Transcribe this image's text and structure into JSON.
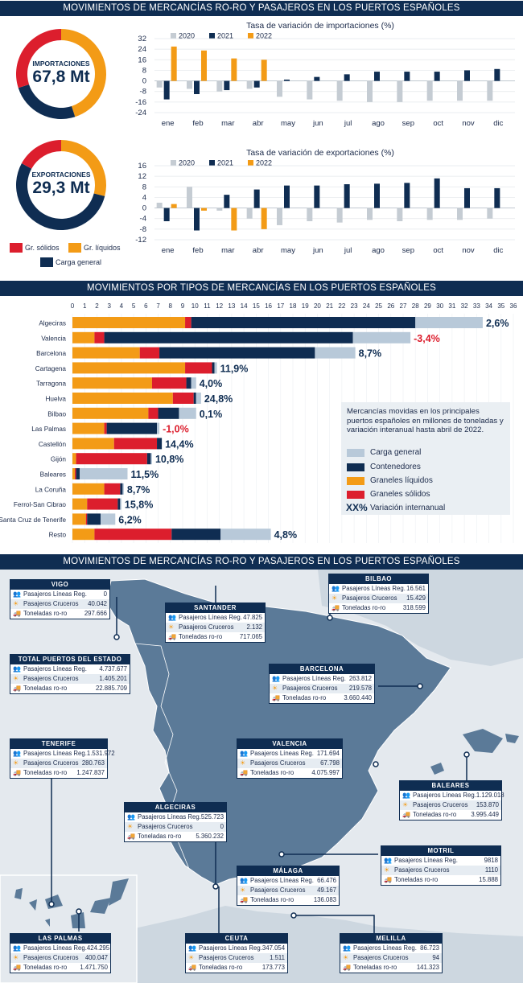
{
  "section1_title": "MOVIMIENTOS DE MERCANCÍAS RO-RO Y PASAJEROS EN LOS PUERTOS ESPAÑOLES",
  "section2_title": "MOVIMIENTOS POR TIPOS DE MERCANCÍAS EN LOS PUERTOS ESPAÑOLES",
  "section3_title": "MOVIMIENTOS DE MERCANCÍAS RO-RO Y PASAJEROS EN LOS PUERTOS ESPAÑOLES",
  "colors": {
    "navy": "#0f2d52",
    "orange": "#f39b16",
    "red": "#dc1e2d",
    "light": "#b8c9d9",
    "gray": "#c5ccd3",
    "sea": "#e4e9ee",
    "land": "#5b7a98"
  },
  "donuts": [
    {
      "label": "IMPORTACIONES",
      "value": "67,8 Mt",
      "shares": {
        "solidos": 0.3,
        "liquidos": 0.45,
        "general": 0.25
      }
    },
    {
      "label": "EXPORTACIONES",
      "value": "29,3 Mt",
      "shares": {
        "solidos": 0.17,
        "liquidos": 0.29,
        "general": 0.54
      }
    }
  ],
  "donut_legend": {
    "solidos": "Gr. sólidos",
    "liquidos": "Gr. líquidos",
    "general": "Carga general"
  },
  "chart_data": [
    {
      "type": "bar",
      "title": "Tasa de variación de importaciones (%)",
      "categories": [
        "ene",
        "feb",
        "mar",
        "abr",
        "may",
        "jun",
        "jul",
        "ago",
        "sep",
        "oct",
        "nov",
        "dic"
      ],
      "ylim": [
        -24,
        32
      ],
      "yticks": [
        32,
        24,
        16,
        8,
        0,
        -8,
        -16,
        -24
      ],
      "series": [
        {
          "name": "2020",
          "color": "#c5ccd3",
          "values": [
            -5,
            -6,
            -8,
            -6,
            -12,
            -14,
            -15,
            -16,
            -16,
            -15,
            -15,
            -15
          ]
        },
        {
          "name": "2021",
          "color": "#0f2d52",
          "values": [
            -14,
            -10,
            -7,
            -5,
            1,
            3,
            5,
            7,
            7,
            7,
            8,
            9
          ]
        },
        {
          "name": "2022",
          "color": "#f39b16",
          "values": [
            26,
            23,
            17,
            16,
            null,
            null,
            null,
            null,
            null,
            null,
            null,
            null
          ]
        }
      ]
    },
    {
      "type": "bar",
      "title": "Tasa de variación de exportaciones (%)",
      "categories": [
        "ene",
        "feb",
        "mar",
        "abr",
        "may",
        "jun",
        "jul",
        "ago",
        "sep",
        "oct",
        "nov",
        "dic"
      ],
      "ylim": [
        -12,
        16
      ],
      "yticks": [
        16,
        12,
        8,
        4,
        0,
        -4,
        -8,
        -12
      ],
      "series": [
        {
          "name": "2020",
          "color": "#c5ccd3",
          "values": [
            2,
            8,
            -1,
            -4,
            -6.5,
            -5,
            -5.5,
            -4.5,
            -5,
            -4.5,
            -4.5,
            -4
          ]
        },
        {
          "name": "2021",
          "color": "#0f2d52",
          "values": [
            -5,
            -8.5,
            5,
            7,
            8.5,
            8.5,
            9,
            9.2,
            9.5,
            11.2,
            7.5,
            7.5
          ]
        },
        {
          "name": "2022",
          "color": "#f39b16",
          "values": [
            1.5,
            -1,
            -8.5,
            -8,
            null,
            null,
            null,
            null,
            null,
            null,
            null,
            null
          ]
        }
      ]
    },
    {
      "type": "bar",
      "orientation": "horizontal",
      "stacked": true,
      "xlim": [
        0,
        36
      ],
      "xticks": [
        0,
        1,
        2,
        3,
        4,
        5,
        6,
        7,
        8,
        9,
        10,
        11,
        12,
        13,
        14,
        15,
        16,
        17,
        18,
        19,
        20,
        21,
        22,
        23,
        24,
        25,
        26,
        27,
        28,
        29,
        30,
        31,
        32,
        33,
        34,
        35,
        36
      ],
      "categories": [
        "Algeciras",
        "Valencia",
        "Barcelona",
        "Cartagena",
        "Tarragona",
        "Huelva",
        "Bilbao",
        "Las Palmas",
        "Castellón",
        "Gijón",
        "Baleares",
        "La Coruña",
        "Ferrol-San Cibrao",
        "Santa Cruz de Tenerife",
        "Resto"
      ],
      "series": [
        {
          "name": "Graneles líquidos",
          "color": "#f39b16",
          "values": [
            9.2,
            1.8,
            5.5,
            9.2,
            6.5,
            8.2,
            6.2,
            2.6,
            3.4,
            0.3,
            0.2,
            2.6,
            1.2,
            1.1,
            1.8
          ]
        },
        {
          "name": "Graneles sólidos",
          "color": "#dc1e2d",
          "values": [
            0.5,
            0.8,
            1.6,
            2.2,
            2.8,
            1.7,
            0.8,
            0.2,
            3.5,
            5.8,
            0.1,
            1.3,
            2.5,
            0.1,
            6.3
          ]
        },
        {
          "name": "Contenedores",
          "color": "#0f2d52",
          "values": [
            18.3,
            20.3,
            12.7,
            0.2,
            0.4,
            0.2,
            1.7,
            4.1,
            0.4,
            0.3,
            0.3,
            0.2,
            0.2,
            1.1,
            4.0
          ]
        },
        {
          "name": "Carga general",
          "color": "#b8c9d9",
          "values": [
            5.5,
            4.7,
            3.3,
            0.2,
            0.4,
            0.4,
            1.4,
            0.2,
            0,
            0.1,
            3.9,
            0.1,
            0.1,
            1.2,
            4.1
          ]
        }
      ],
      "variation": [
        "2,6%",
        "-3,4%",
        "8,7%",
        "11,9%",
        "4,0%",
        "24,8%",
        "0,1%",
        "-1,0%",
        "14,4%",
        "10,8%",
        "11,5%",
        "8,7%",
        "15,8%",
        "6,2%",
        "4,8%"
      ],
      "legend_note": "Mercancías movidas en los principales puertos españoles en millones de toneladas y variación interanual hasta abril de 2022.",
      "legend_items": [
        "Carga general",
        "Contenedores",
        "Graneles líquidos",
        "Graneles sólidos"
      ],
      "legend_xx": "XX%",
      "legend_xx_label": "Variación internanual"
    }
  ],
  "row_labels": {
    "lineas": "Pasajeros Líneas Reg.",
    "cruceros": "Pasajeros Cruceros",
    "ro": "Toneladas ro-ro"
  },
  "ports": [
    {
      "name": "VIGO",
      "lineas": "0",
      "cruceros": "40.042",
      "ro": "297.666"
    },
    {
      "name": "SANTANDER",
      "lineas": "47.825",
      "cruceros": "2.132",
      "ro": "717.065"
    },
    {
      "name": "BILBAO",
      "lineas": "16.561",
      "cruceros": "15.429",
      "ro": "318.599"
    },
    {
      "name": "TOTAL PUERTOS DEL ESTADO",
      "lineas": "4.737.677",
      "cruceros": "1.405.201",
      "ro": "22.885.709"
    },
    {
      "name": "BARCELONA",
      "lineas": "263.812",
      "cruceros": "219.578",
      "ro": "3.660.440"
    },
    {
      "name": "TENERIFE",
      "lineas": "1.531.972",
      "cruceros": "280.763",
      "ro": "1.247.837"
    },
    {
      "name": "VALENCIA",
      "lineas": "171.694",
      "cruceros": "67.798",
      "ro": "4.075.997"
    },
    {
      "name": "BALEARES",
      "lineas": "1.129.018",
      "cruceros": "153.870",
      "ro": "3.995.449"
    },
    {
      "name": "ALGECIRAS",
      "lineas": "525.723",
      "cruceros": "0",
      "ro": "5.360.232"
    },
    {
      "name": "MOTRIL",
      "lineas": "9818",
      "cruceros": "1110",
      "ro": "15.888"
    },
    {
      "name": "MÁLAGA",
      "lineas": "66.476",
      "cruceros": "49.167",
      "ro": "136.083"
    },
    {
      "name": "LAS PALMAS",
      "lineas": "424.295",
      "cruceros": "400.047",
      "ro": "1.471.750"
    },
    {
      "name": "CEUTA",
      "lineas": "347.054",
      "cruceros": "1.511",
      "ro": "173.773"
    },
    {
      "name": "MELILLA",
      "lineas": "86.723",
      "cruceros": "94",
      "ro": "141.323"
    }
  ]
}
